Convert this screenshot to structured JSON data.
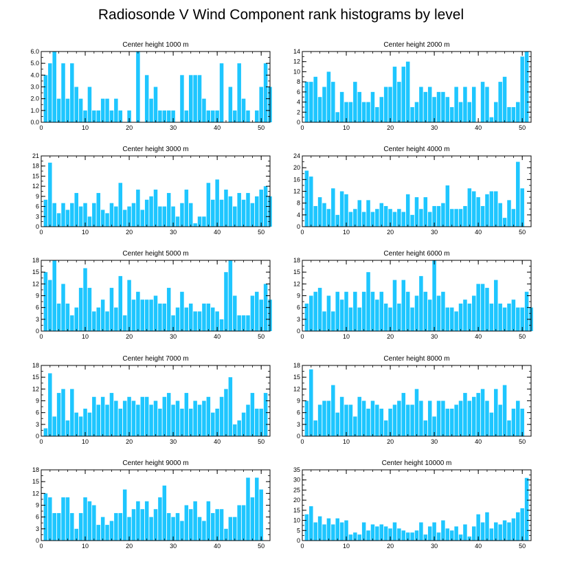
{
  "title": "Radiosonde V Wind Component rank histograms by level",
  "colors": {
    "bar": "#1ec6ff",
    "axis": "#000000",
    "background": "#ffffff"
  },
  "chart_data": [
    {
      "type": "bar",
      "title": "Center height 1000 m",
      "xlim": [
        0,
        52
      ],
      "ylim": [
        0,
        6
      ],
      "xticks": [
        0,
        10,
        20,
        30,
        40,
        50
      ],
      "yticks": [
        0.0,
        1.0,
        2.0,
        3.0,
        4.0,
        5.0,
        6.0
      ],
      "ytick_decimals": 1,
      "values": [
        4,
        5,
        6,
        2,
        5,
        2,
        5,
        3,
        2,
        1,
        3,
        1,
        1,
        2,
        2,
        1,
        2,
        1,
        0,
        1,
        0,
        6,
        0,
        4,
        2,
        3,
        1,
        1,
        1,
        1,
        0,
        4,
        1,
        4,
        4,
        4,
        2,
        1,
        1,
        1,
        5,
        0,
        3,
        1,
        5,
        2,
        1,
        0,
        1,
        3,
        5,
        3
      ]
    },
    {
      "type": "bar",
      "title": "Center height 2000 m",
      "xlim": [
        0,
        52
      ],
      "ylim": [
        0,
        14
      ],
      "xticks": [
        0,
        10,
        20,
        30,
        40,
        50
      ],
      "yticks": [
        0,
        2,
        4,
        6,
        8,
        10,
        12,
        14
      ],
      "ytick_decimals": 0,
      "values": [
        8,
        8,
        9,
        5,
        7,
        10,
        8,
        2,
        6,
        4,
        4,
        8,
        6,
        4,
        4,
        6,
        3,
        5,
        7,
        7,
        11,
        8,
        11,
        12,
        3,
        4,
        7,
        6,
        7,
        5,
        6,
        6,
        5,
        3,
        7,
        4,
        7,
        4,
        7,
        0,
        8,
        7,
        1,
        4,
        8,
        9,
        3,
        3,
        4,
        13,
        14,
        0
      ]
    },
    {
      "type": "bar",
      "title": "Center height 3000 m",
      "xlim": [
        0,
        52
      ],
      "ylim": [
        0,
        21
      ],
      "xticks": [
        0,
        10,
        20,
        30,
        40,
        50
      ],
      "yticks": [
        0,
        3,
        6,
        9,
        12,
        15,
        18,
        21
      ],
      "ytick_decimals": 0,
      "values": [
        8,
        19,
        7,
        4,
        7,
        5,
        7,
        10,
        6,
        7,
        3,
        7,
        10,
        5,
        4,
        7,
        6,
        13,
        5,
        6,
        7,
        11,
        5,
        8,
        9,
        11,
        6,
        6,
        10,
        6,
        3,
        7,
        11,
        7,
        1,
        3,
        3,
        13,
        8,
        14,
        8,
        11,
        9,
        6,
        10,
        8,
        10,
        7,
        9,
        11,
        12,
        9
      ]
    },
    {
      "type": "bar",
      "title": "Center height 4000 m",
      "xlim": [
        0,
        52
      ],
      "ylim": [
        0,
        24
      ],
      "xticks": [
        0,
        10,
        20,
        30,
        40,
        50
      ],
      "yticks": [
        0,
        4,
        8,
        12,
        16,
        20,
        24
      ],
      "ytick_decimals": 0,
      "values": [
        19,
        17,
        7,
        10,
        8,
        6,
        13,
        4,
        12,
        11,
        5,
        6,
        9,
        5,
        9,
        5,
        6,
        8,
        7,
        6,
        5,
        6,
        5,
        11,
        4,
        10,
        6,
        10,
        5,
        7,
        7,
        8,
        14,
        6,
        6,
        6,
        7,
        13,
        12,
        10,
        7,
        11,
        12,
        12,
        8,
        3,
        9,
        6,
        22,
        13,
        0,
        0
      ]
    },
    {
      "type": "bar",
      "title": "Center height 5000 m",
      "xlim": [
        0,
        52
      ],
      "ylim": [
        0,
        18
      ],
      "xticks": [
        0,
        10,
        20,
        30,
        40,
        50
      ],
      "yticks": [
        0,
        3,
        6,
        9,
        12,
        15,
        18
      ],
      "ytick_decimals": 0,
      "values": [
        15,
        13,
        18,
        7,
        12,
        7,
        4,
        6,
        11,
        16,
        11,
        5,
        6,
        8,
        5,
        11,
        6,
        14,
        4,
        13,
        8,
        10,
        8,
        8,
        8,
        9,
        7,
        7,
        11,
        4,
        6,
        10,
        6,
        7,
        5,
        5,
        7,
        7,
        6,
        5,
        3,
        15,
        18,
        9,
        4,
        4,
        4,
        9,
        10,
        8,
        12,
        8
      ]
    },
    {
      "type": "bar",
      "title": "Center height 6000 m",
      "xlim": [
        0,
        52
      ],
      "ylim": [
        0,
        18
      ],
      "xticks": [
        0,
        10,
        20,
        30,
        40,
        50
      ],
      "yticks": [
        0,
        3,
        6,
        9,
        12,
        15,
        18
      ],
      "ytick_decimals": 0,
      "values": [
        7,
        9,
        10,
        11,
        5,
        9,
        5,
        10,
        8,
        10,
        6,
        10,
        6,
        10,
        15,
        10,
        8,
        10,
        7,
        6,
        13,
        7,
        13,
        10,
        6,
        9,
        14,
        10,
        8,
        18,
        9,
        10,
        6,
        6,
        5,
        7,
        8,
        7,
        9,
        12,
        12,
        11,
        7,
        13,
        7,
        6,
        7,
        8,
        6,
        6,
        10,
        6
      ]
    },
    {
      "type": "bar",
      "title": "Center height 7000 m",
      "xlim": [
        0,
        52
      ],
      "ylim": [
        0,
        18
      ],
      "xticks": [
        0,
        10,
        20,
        30,
        40,
        50
      ],
      "yticks": [
        0,
        3,
        6,
        9,
        12,
        15,
        18
      ],
      "ytick_decimals": 0,
      "values": [
        2,
        16,
        5,
        11,
        12,
        4,
        12,
        6,
        5,
        7,
        6,
        10,
        8,
        10,
        8,
        11,
        9,
        7,
        9,
        10,
        9,
        8,
        10,
        10,
        8,
        9,
        7,
        10,
        11,
        8,
        9,
        7,
        11,
        7,
        9,
        8,
        9,
        10,
        6,
        7,
        10,
        12,
        15,
        3,
        4,
        6,
        8,
        11,
        7,
        7,
        11,
        0
      ]
    },
    {
      "type": "bar",
      "title": "Center height 8000 m",
      "xlim": [
        0,
        52
      ],
      "ylim": [
        0,
        18
      ],
      "xticks": [
        0,
        10,
        20,
        30,
        40,
        50
      ],
      "yticks": [
        0,
        3,
        6,
        9,
        12,
        15,
        18
      ],
      "ytick_decimals": 0,
      "values": [
        9,
        17,
        4,
        8,
        9,
        9,
        13,
        6,
        10,
        8,
        8,
        5,
        10,
        9,
        7,
        9,
        8,
        7,
        4,
        7,
        8,
        9,
        11,
        8,
        8,
        12,
        9,
        4,
        9,
        5,
        9,
        9,
        7,
        7,
        8,
        9,
        11,
        9,
        10,
        11,
        12,
        9,
        6,
        12,
        8,
        13,
        4,
        7,
        9,
        7,
        0,
        0
      ]
    },
    {
      "type": "bar",
      "title": "Center height 9000 m",
      "xlim": [
        0,
        52
      ],
      "ylim": [
        0,
        18
      ],
      "xticks": [
        0,
        10,
        20,
        30,
        40,
        50
      ],
      "yticks": [
        0,
        3,
        6,
        9,
        12,
        15,
        18
      ],
      "ytick_decimals": 0,
      "values": [
        12,
        11,
        7,
        7,
        11,
        11,
        7,
        3,
        7,
        11,
        10,
        9,
        4,
        6,
        4,
        5,
        7,
        7,
        13,
        6,
        8,
        10,
        8,
        10,
        6,
        8,
        11,
        14,
        7,
        6,
        7,
        5,
        9,
        8,
        10,
        6,
        5,
        10,
        7,
        8,
        8,
        3,
        6,
        6,
        9,
        9,
        16,
        11,
        16,
        13,
        0,
        0
      ]
    },
    {
      "type": "bar",
      "title": "Center height 10000 m",
      "xlim": [
        0,
        52
      ],
      "ylim": [
        0,
        35
      ],
      "xticks": [
        0,
        10,
        20,
        30,
        40,
        50
      ],
      "yticks": [
        0,
        5,
        10,
        15,
        20,
        25,
        30,
        35
      ],
      "ytick_decimals": 0,
      "values": [
        13,
        17,
        9,
        12,
        8,
        11,
        8,
        11,
        9,
        10,
        3,
        4,
        3,
        9,
        5,
        8,
        7,
        8,
        7,
        6,
        9,
        6,
        5,
        4,
        4,
        5,
        9,
        3,
        7,
        9,
        4,
        10,
        6,
        5,
        7,
        3,
        8,
        2,
        7,
        13,
        9,
        14,
        6,
        9,
        8,
        10,
        9,
        11,
        14,
        16,
        31,
        0
      ]
    }
  ]
}
